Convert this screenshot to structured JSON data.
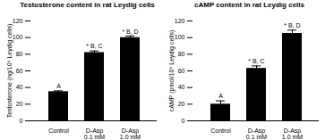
{
  "chart_data": [
    {
      "type": "bar",
      "title": "Testosterone content in rat Leydig cells",
      "y_label": "Testosterone (ng/10⁶ Leydig cells)",
      "categories": [
        "Control",
        "D-Asp 0.1 mM",
        "D-Asp 1.0 mM"
      ],
      "values": [
        35,
        82,
        100
      ],
      "errors": [
        1,
        2,
        2
      ],
      "annotations": [
        "A",
        "* B, C",
        "* B, D"
      ],
      "color": "#000000",
      "ylim": [
        0,
        120
      ],
      "yticks": [
        0,
        20,
        40,
        60,
        80,
        100,
        120
      ],
      "grid": false
    },
    {
      "type": "bar",
      "title": "cAMP content in rat Leydig cells",
      "y_label": "cAMP (pmol/10⁶ Leydig cells)",
      "categories": [
        "Control",
        "D-Asp 0.1 mM",
        "D-Asp 1.0 mM"
      ],
      "values": [
        20,
        63,
        105
      ],
      "errors": [
        4,
        3,
        4
      ],
      "annotations": [
        "A",
        "* B, C",
        "* B, D"
      ],
      "color": "#000000",
      "ylim": [
        0,
        120
      ],
      "yticks": [
        0,
        20,
        40,
        60,
        80,
        100,
        120
      ],
      "grid": false
    }
  ]
}
